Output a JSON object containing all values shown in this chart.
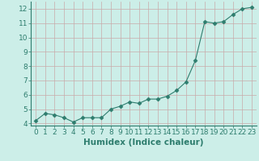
{
  "x": [
    0,
    1,
    2,
    3,
    4,
    5,
    6,
    7,
    8,
    9,
    10,
    11,
    12,
    13,
    14,
    15,
    16,
    17,
    18,
    19,
    20,
    21,
    22,
    23
  ],
  "y": [
    4.2,
    4.7,
    4.6,
    4.4,
    4.1,
    4.4,
    4.4,
    4.4,
    5.0,
    5.2,
    5.5,
    5.4,
    5.7,
    5.7,
    5.9,
    6.3,
    6.9,
    8.4,
    11.1,
    11.0,
    11.1,
    11.6,
    12.0,
    12.1
  ],
  "line_color": "#2e7d6e",
  "marker": "D",
  "marker_size": 2.5,
  "bg_color": "#cceee8",
  "grid_color": "#c8aaaa",
  "xlabel": "Humidex (Indice chaleur)",
  "xlim": [
    -0.5,
    23.5
  ],
  "ylim": [
    3.85,
    12.5
  ],
  "yticks": [
    4,
    5,
    6,
    7,
    8,
    9,
    10,
    11,
    12
  ],
  "xticks": [
    0,
    1,
    2,
    3,
    4,
    5,
    6,
    7,
    8,
    9,
    10,
    11,
    12,
    13,
    14,
    15,
    16,
    17,
    18,
    19,
    20,
    21,
    22,
    23
  ],
  "axis_color": "#2e7d6e",
  "font_color": "#2e7d6e",
  "font_size": 6.5,
  "xlabel_fontsize": 7.5
}
